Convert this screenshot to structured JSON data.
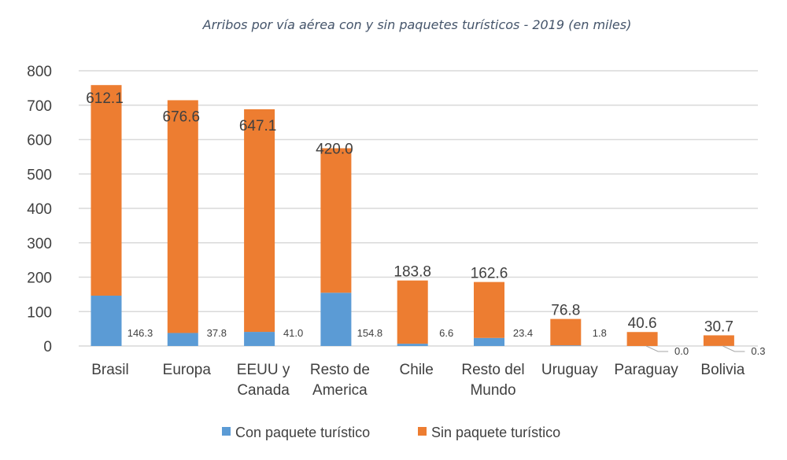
{
  "chart_data": {
    "type": "bar",
    "stacked": true,
    "title": "Arribos por vía aérea con y sin  paquetes turísticos - 2019 (en miles)",
    "xlabel": "",
    "ylabel": "",
    "ylim": [
      0,
      800
    ],
    "yticks": [
      "0",
      "100",
      "200",
      "300",
      "400",
      "500",
      "600",
      "700",
      "800"
    ],
    "grid": true,
    "legend_position": "bottom",
    "categories": [
      [
        "Brasil"
      ],
      [
        "Europa"
      ],
      [
        "EEUU y",
        "Canada"
      ],
      [
        "Resto de",
        "America"
      ],
      [
        "Chile"
      ],
      [
        "Resto del",
        "Mundo"
      ],
      [
        "Uruguay"
      ],
      [
        "Paraguay"
      ],
      [
        "Bolivia"
      ]
    ],
    "series": [
      {
        "name": "Con paquete turístico",
        "color": "#5b9bd5",
        "values": [
          146.3,
          37.8,
          41.0,
          154.8,
          6.6,
          23.4,
          1.8,
          0.0,
          0.3
        ],
        "labels": [
          "146.3",
          "37.8",
          "41.0",
          "154.8",
          "6.6",
          "23.4",
          "1.8",
          "0.0",
          "0.3"
        ]
      },
      {
        "name": "Sin paquete turístico",
        "color": "#ed7d31",
        "values": [
          612.1,
          676.6,
          647.1,
          420.0,
          183.8,
          162.6,
          76.8,
          40.6,
          30.7
        ],
        "labels": [
          "612.1",
          "676.6",
          "647.1",
          "420.0",
          "183.8",
          "162.6",
          "76.8",
          "40.6",
          "30.7"
        ]
      }
    ]
  }
}
